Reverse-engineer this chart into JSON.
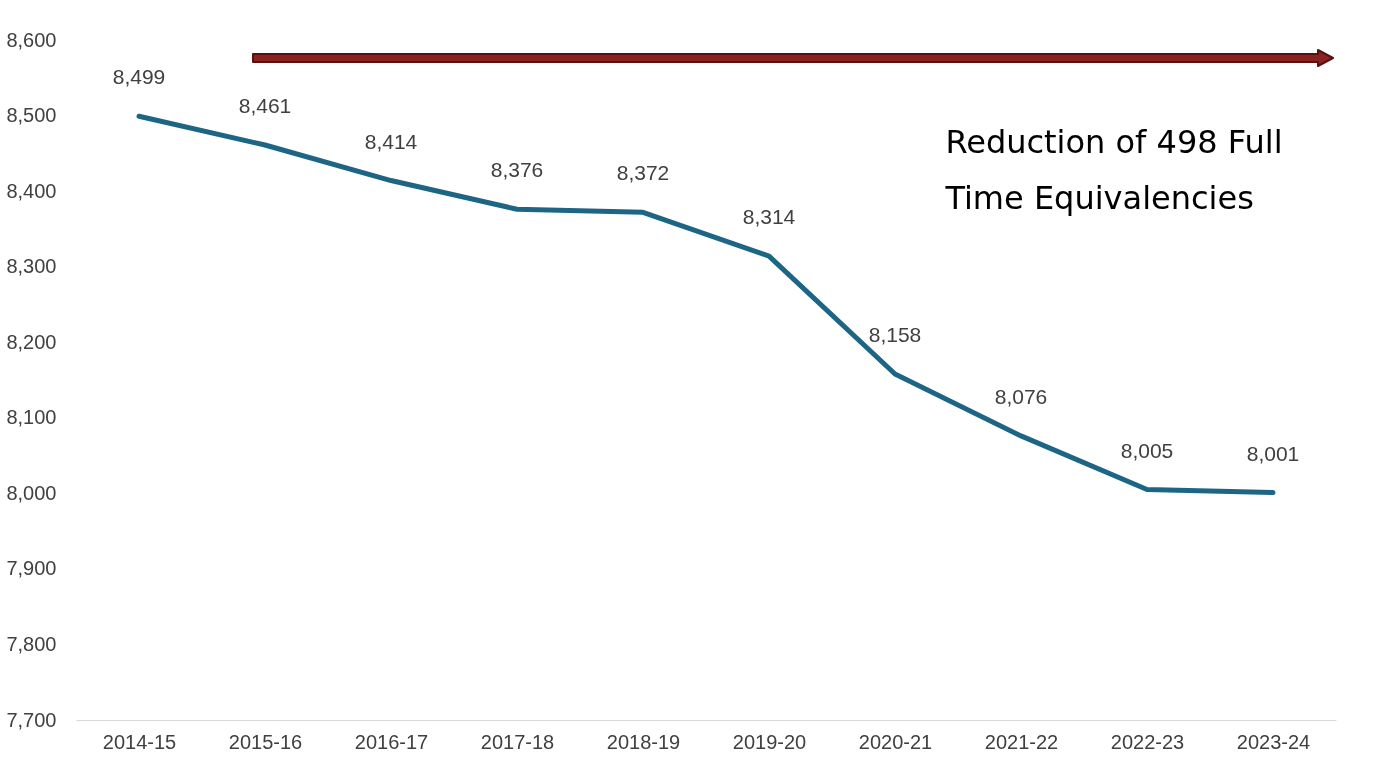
{
  "chart_data": {
    "type": "line",
    "categories": [
      "2014-15",
      "2015-16",
      "2016-17",
      "2017-18",
      "2018-19",
      "2019-20",
      "2020-21",
      "2021-22",
      "2022-23",
      "2023-24"
    ],
    "series": [
      {
        "color": "#1d6585",
        "values": [
          8499,
          8461,
          8414,
          8376,
          8372,
          8314,
          8158,
          8076,
          8005,
          8001
        ]
      }
    ],
    "value_labels": [
      "8,499",
      "8,461",
      "8,414",
      "8,376",
      "8,372",
      "8,314",
      "8,158",
      "8,076",
      "8,005",
      "8,001"
    ],
    "ylim": [
      7700,
      8600
    ],
    "yticks": [
      {
        "value": 7700,
        "label": "7,700"
      },
      {
        "value": 7800,
        "label": "7,800"
      },
      {
        "value": 7900,
        "label": "7,900"
      },
      {
        "value": 8000,
        "label": "8,000"
      },
      {
        "value": 8100,
        "label": "8,100"
      },
      {
        "value": 8200,
        "label": "8,200"
      },
      {
        "value": 8300,
        "label": "8,300"
      },
      {
        "value": 8400,
        "label": "8,400"
      },
      {
        "value": 8500,
        "label": "8,500"
      },
      {
        "value": 8600,
        "label": "8,600"
      }
    ],
    "grid": false,
    "marker": "none",
    "line_style": "solid",
    "annotations": [
      "Reduction of 498 Full Time Equivalencies"
    ]
  }
}
